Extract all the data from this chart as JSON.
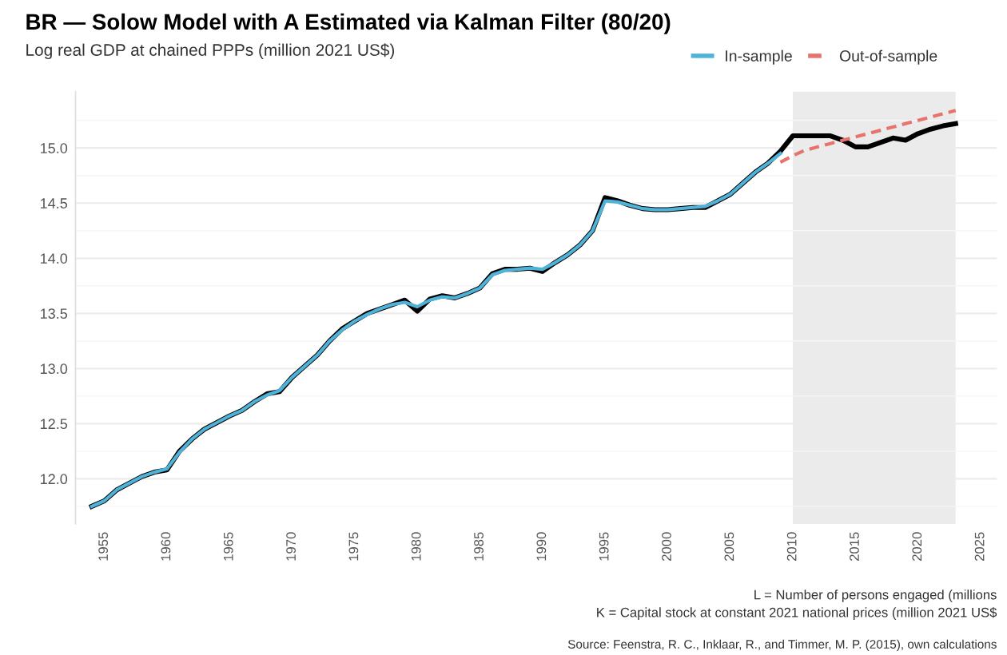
{
  "chart_data": {
    "type": "line",
    "title": "BR — Solow Model with A Estimated via Kalman Filter (80/20)",
    "subtitle": "Log real GDP at chained PPPs (million 2021 US$)",
    "annotations": [
      "L = Number of persons engaged (millions",
      "K = Capital stock at constant 2021 national prices (million 2021 US$",
      "Source: Feenstra, R. C., Inklaar, R., and Timmer, M. P. (2015), own calculations"
    ],
    "series": [
      {
        "color": "#000000",
        "x": [
          1954,
          1955,
          1956,
          1957,
          1958,
          1959,
          1960,
          1961,
          1962,
          1963,
          1964,
          1965,
          1966,
          1967,
          1968,
          1969,
          1970,
          1971,
          1972,
          1973,
          1974,
          1975,
          1976,
          1977,
          1978,
          1979,
          1980,
          1981,
          1982,
          1983,
          1984,
          1985,
          1986,
          1987,
          1988,
          1989,
          1990,
          1991,
          1992,
          1993,
          1994,
          1995,
          1996,
          1997,
          1998,
          1999,
          2000,
          2001,
          2002,
          2003,
          2004,
          2005,
          2006,
          2007,
          2008,
          2009,
          2010,
          2011,
          2012,
          2013,
          2014,
          2015,
          2016,
          2017,
          2018,
          2019,
          2020,
          2021,
          2022,
          2023
        ],
        "values": [
          11.75,
          11.8,
          11.9,
          11.96,
          12.02,
          12.06,
          12.08,
          12.25,
          12.36,
          12.45,
          12.51,
          12.57,
          12.62,
          12.7,
          12.77,
          12.79,
          12.92,
          13.02,
          13.12,
          13.25,
          13.36,
          13.43,
          13.5,
          13.54,
          13.58,
          13.62,
          13.52,
          13.63,
          13.66,
          13.64,
          13.68,
          13.73,
          13.86,
          13.9,
          13.9,
          13.91,
          13.88,
          13.96,
          14.03,
          14.12,
          14.25,
          14.55,
          14.52,
          14.48,
          14.45,
          14.44,
          14.44,
          14.45,
          14.46,
          14.46,
          14.52,
          14.58,
          14.68,
          14.78,
          14.86,
          14.97,
          15.11,
          15.11,
          15.11,
          15.11,
          15.07,
          15.01,
          15.01,
          15.05,
          15.09,
          15.07,
          15.13,
          15.17,
          15.2,
          15.22
        ]
      },
      {
        "name": "In-sample",
        "color": "#4fb3d9",
        "x": [
          1954,
          1955,
          1956,
          1957,
          1958,
          1959,
          1960,
          1961,
          1962,
          1963,
          1964,
          1965,
          1966,
          1967,
          1968,
          1969,
          1970,
          1971,
          1972,
          1973,
          1974,
          1975,
          1976,
          1977,
          1978,
          1979,
          1980,
          1981,
          1982,
          1983,
          1984,
          1985,
          1986,
          1987,
          1988,
          1989,
          1990,
          1991,
          1992,
          1993,
          1994,
          1995,
          1996,
          1997,
          1998,
          1999,
          2000,
          2001,
          2002,
          2003,
          2004,
          2005,
          2006,
          2007,
          2008,
          2009
        ],
        "values": [
          11.75,
          11.8,
          11.9,
          11.96,
          12.02,
          12.06,
          12.09,
          12.24,
          12.36,
          12.45,
          12.51,
          12.57,
          12.62,
          12.7,
          12.76,
          12.8,
          12.92,
          13.02,
          13.12,
          13.25,
          13.35,
          13.43,
          13.49,
          13.54,
          13.58,
          13.6,
          13.56,
          13.62,
          13.65,
          13.64,
          13.68,
          13.73,
          13.85,
          13.89,
          13.9,
          13.91,
          13.9,
          13.96,
          14.03,
          14.12,
          14.25,
          14.52,
          14.51,
          14.48,
          14.45,
          14.44,
          14.44,
          14.45,
          14.46,
          14.47,
          14.52,
          14.58,
          14.68,
          14.78,
          14.86,
          14.95
        ]
      },
      {
        "name": "Out-of-sample",
        "color": "#e8736c",
        "line_style": "dashed",
        "x": [
          2009,
          2010,
          2011,
          2012,
          2013,
          2014,
          2015,
          2016,
          2017,
          2018,
          2019,
          2020,
          2021,
          2022,
          2023
        ],
        "values": [
          14.87,
          14.93,
          14.98,
          15.01,
          15.04,
          15.07,
          15.1,
          15.13,
          15.16,
          15.19,
          15.22,
          15.25,
          15.28,
          15.31,
          15.34
        ]
      }
    ],
    "bands": [
      {
        "axis": "x",
        "from": 2010,
        "to": 2023,
        "color": "#ebebeb"
      }
    ],
    "xlim": [
      1952.7,
      2026.3
    ],
    "xticks": [
      1955,
      1960,
      1965,
      1970,
      1975,
      1980,
      1985,
      1990,
      1995,
      2000,
      2005,
      2010,
      2015,
      2020,
      2025
    ],
    "ylim": [
      11.59,
      15.51
    ],
    "yticks": [
      {
        "value": 11.75,
        "label": null
      },
      {
        "value": 12.0,
        "label": "12.0"
      },
      {
        "value": 12.25,
        "label": null
      },
      {
        "value": 12.5,
        "label": "12.5"
      },
      {
        "value": 12.75,
        "label": null
      },
      {
        "value": 13.0,
        "label": "13.0"
      },
      {
        "value": 13.25,
        "label": null
      },
      {
        "value": 13.5,
        "label": "13.5"
      },
      {
        "value": 13.75,
        "label": null
      },
      {
        "value": 14.0,
        "label": "14.0"
      },
      {
        "value": 14.25,
        "label": null
      },
      {
        "value": 14.5,
        "label": "14.5"
      },
      {
        "value": 14.75,
        "label": null
      },
      {
        "value": 15.0,
        "label": "15.0"
      },
      {
        "value": 15.25,
        "label": null
      }
    ],
    "grid": "y",
    "legend": "top right"
  }
}
